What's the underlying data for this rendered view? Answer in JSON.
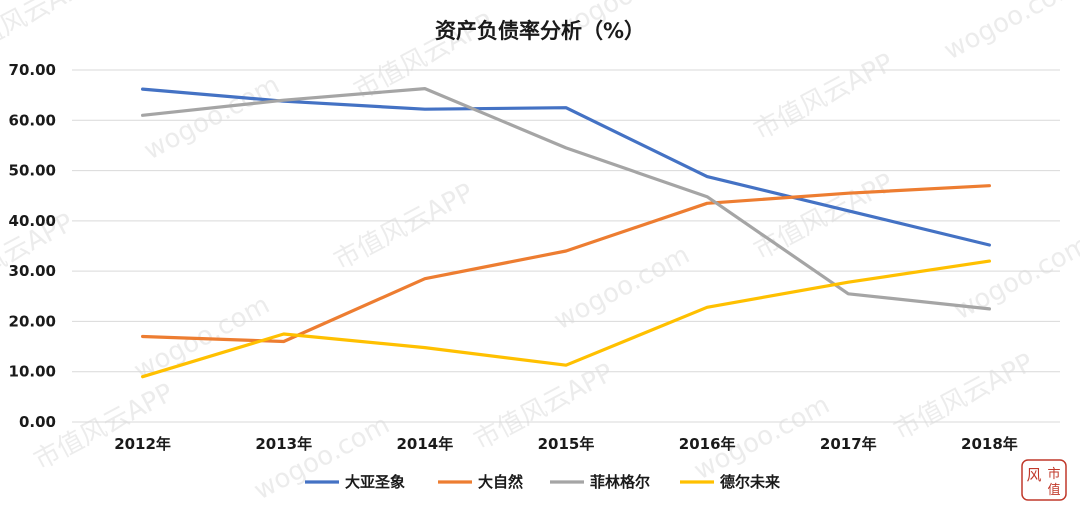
{
  "chart_data": {
    "type": "line",
    "title": "资产负债率分析（%）",
    "xlabel": "",
    "ylabel": "",
    "categories": [
      "2012年",
      "2013年",
      "2014年",
      "2015年",
      "2016年",
      "2017年",
      "2018年"
    ],
    "ylim": [
      0,
      70
    ],
    "yticks": [
      "0.00",
      "10.00",
      "20.00",
      "30.00",
      "40.00",
      "50.00",
      "60.00",
      "70.00"
    ],
    "grid": true,
    "legend_position": "bottom",
    "series": [
      {
        "name": "大亚圣象",
        "color": "#4472c4",
        "values": [
          66.2,
          63.8,
          62.2,
          62.5,
          48.8,
          42.0,
          35.2
        ]
      },
      {
        "name": "大自然",
        "color": "#ed7d31",
        "values": [
          17.0,
          16.0,
          28.5,
          34.0,
          43.5,
          45.5,
          47.0
        ]
      },
      {
        "name": "菲林格尔",
        "color": "#a5a5a5",
        "values": [
          61.0,
          64.0,
          66.3,
          54.5,
          44.8,
          25.5,
          22.5
        ]
      },
      {
        "name": "德尔未来",
        "color": "#ffc000",
        "values": [
          9.0,
          17.5,
          14.8,
          11.3,
          22.8,
          27.8,
          32.0
        ]
      }
    ]
  },
  "watermark": {
    "text_cn": "市值风云APP",
    "text_url": "wogoo.com"
  },
  "logo": {
    "text_1": "风",
    "text_2": "市",
    "text_3": "值",
    "color": "#c0392b"
  }
}
